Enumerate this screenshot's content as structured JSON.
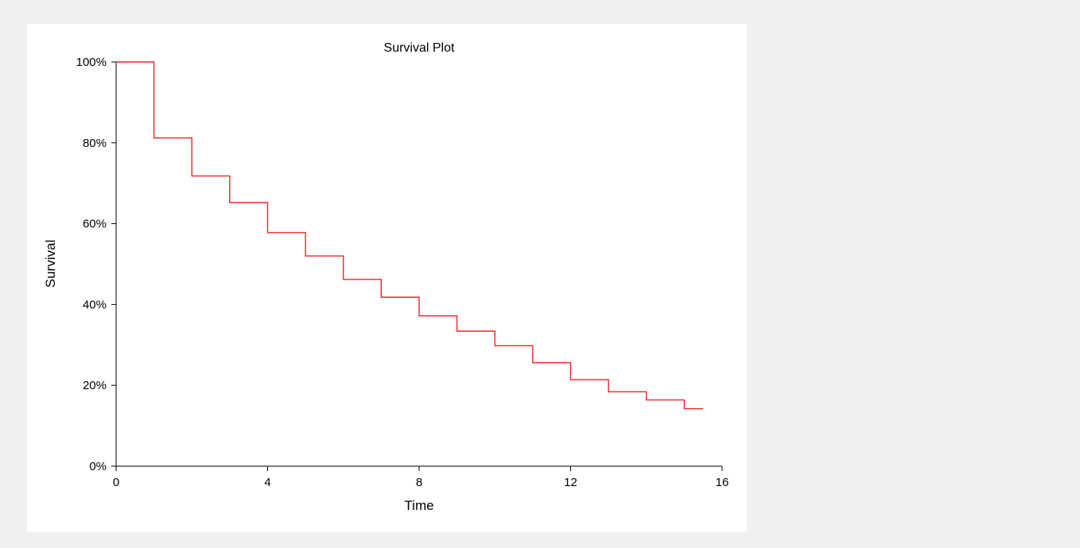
{
  "chart_data": {
    "type": "line",
    "step": true,
    "title": "Survival Plot",
    "xlabel": "Time",
    "ylabel": "Survival",
    "xlim": [
      0,
      16
    ],
    "ylim": [
      0,
      100
    ],
    "x_ticks": [
      0,
      4,
      8,
      12,
      16
    ],
    "x_tick_labels": [
      "0",
      "4",
      "8",
      "12",
      "16"
    ],
    "y_ticks": [
      0,
      20,
      40,
      60,
      80,
      100
    ],
    "y_tick_labels": [
      "0%",
      "20%",
      "40%",
      "60%",
      "80%",
      "100%"
    ],
    "grid": false,
    "legend": "none",
    "series": [
      {
        "color": "#e8262a",
        "x": [
          0,
          1,
          2,
          3,
          4,
          5,
          6,
          7,
          8,
          9,
          10,
          11,
          12,
          13,
          14,
          15,
          15.5
        ],
        "y": [
          100,
          81.2,
          71.8,
          65.2,
          57.8,
          52.0,
          46.2,
          41.8,
          37.2,
          33.4,
          29.8,
          25.6,
          21.4,
          18.4,
          16.4,
          14.2,
          14.2
        ]
      }
    ]
  }
}
